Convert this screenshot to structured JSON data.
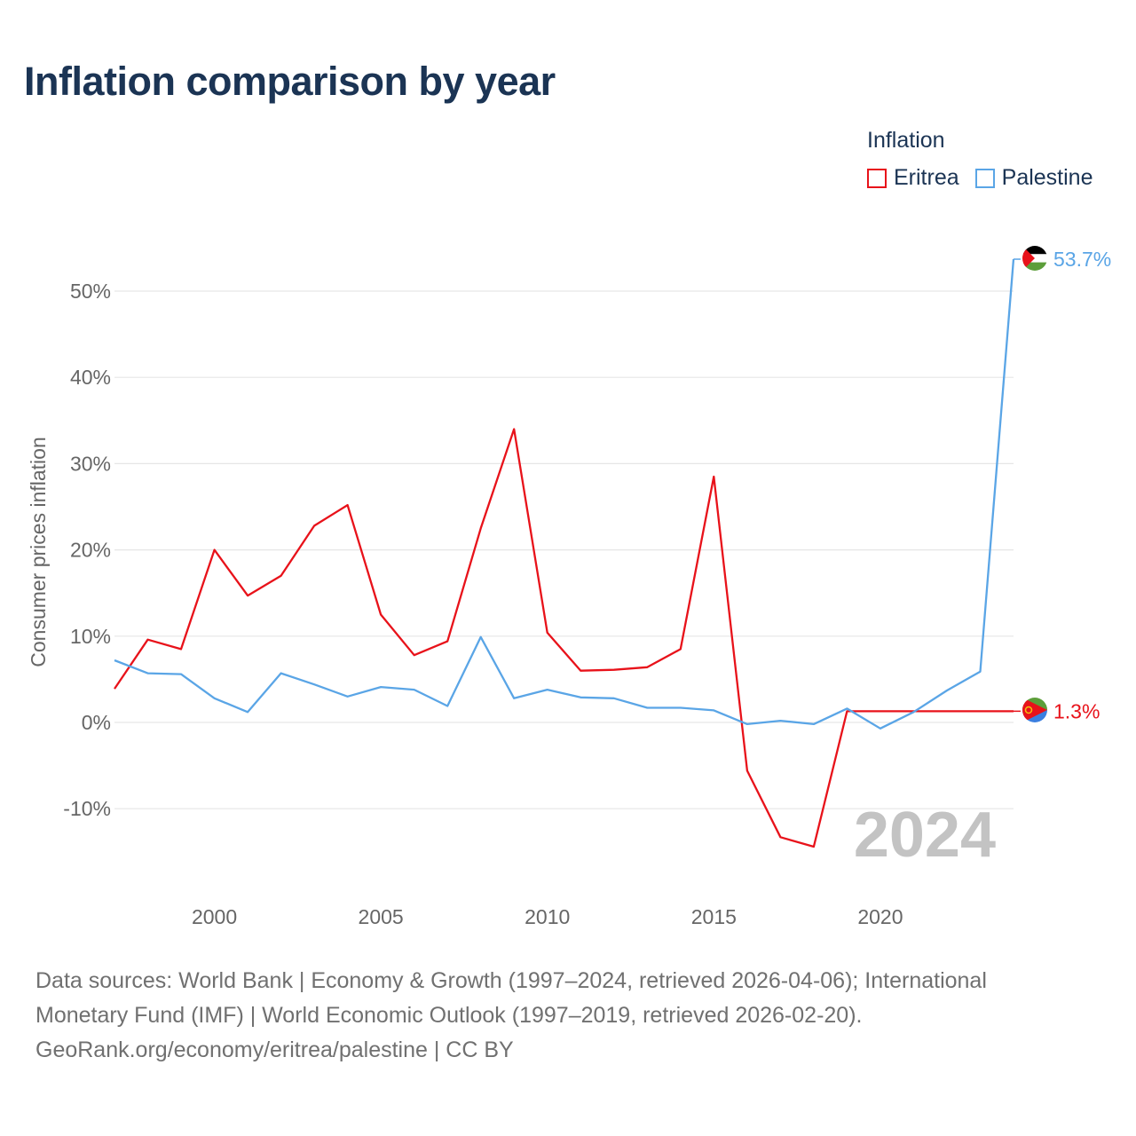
{
  "colors": {
    "eritrea": "#e8121a",
    "palestine": "#5aa5e6",
    "title": "#1b3454",
    "axis_text": "#666666",
    "grid": "#e6e6e6",
    "watermark": "#c3c3c3",
    "footer": "#707070"
  },
  "chart_data": {
    "type": "line",
    "title": "Inflation comparison by year",
    "legend_title": "Inflation",
    "xlabel": "",
    "ylabel": "Consumer prices inflation",
    "x": [
      1997,
      1998,
      1999,
      2000,
      2001,
      2002,
      2003,
      2004,
      2005,
      2006,
      2007,
      2008,
      2009,
      2010,
      2011,
      2012,
      2013,
      2014,
      2015,
      2016,
      2017,
      2018,
      2019,
      2020,
      2021,
      2022,
      2023,
      2024
    ],
    "xlim": [
      1997,
      2024
    ],
    "ylim": [
      -20,
      57
    ],
    "x_ticks": [
      2000,
      2005,
      2010,
      2015,
      2020
    ],
    "x_tick_labels": [
      "2000",
      "2005",
      "2010",
      "2015",
      "2020"
    ],
    "y_ticks": [
      -10,
      0,
      10,
      20,
      30,
      40,
      50
    ],
    "y_tick_labels": [
      "-10%",
      "0%",
      "10%",
      "20%",
      "30%",
      "40%",
      "50%"
    ],
    "year_watermark": "2024",
    "series": [
      {
        "name": "Eritrea",
        "key": "eritrea",
        "values": [
          3.9,
          9.6,
          8.5,
          20.0,
          14.7,
          17.0,
          22.8,
          25.2,
          12.5,
          7.8,
          9.4,
          22.5,
          34.0,
          10.4,
          6.0,
          6.1,
          6.4,
          8.5,
          28.5,
          -5.6,
          -13.3,
          -14.4,
          1.3,
          1.3,
          1.3,
          1.3,
          1.3,
          1.3
        ],
        "end_label": "1.3%",
        "end_value": 1.3,
        "flag_icon": "eritrea-flag-icon"
      },
      {
        "name": "Palestine",
        "key": "palestine",
        "values": [
          7.2,
          5.7,
          5.6,
          2.8,
          1.2,
          5.7,
          4.4,
          3.0,
          4.1,
          3.8,
          1.9,
          9.9,
          2.8,
          3.8,
          2.9,
          2.8,
          1.7,
          1.7,
          1.4,
          -0.2,
          0.2,
          -0.2,
          1.6,
          -0.7,
          1.2,
          3.7,
          5.9,
          53.7
        ],
        "end_label": "53.7%",
        "end_value": 53.7,
        "flag_icon": "palestine-flag-icon"
      }
    ]
  },
  "footer": {
    "line1": "Data sources: World Bank | Economy & Growth (1997–2024, retrieved 2026-04-06); International",
    "line2": "Monetary Fund (IMF) | World Economic Outlook (1997–2019, retrieved 2026-02-20).",
    "line3": "GeoRank.org/economy/eritrea/palestine | CC BY"
  }
}
